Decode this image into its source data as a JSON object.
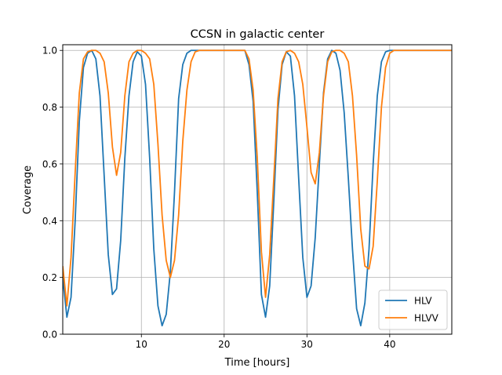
{
  "chart_data": {
    "type": "line",
    "title": "CCSN in galactic center",
    "xlabel": "Time [hours]",
    "ylabel": "Coverage",
    "xlim": [
      0.5,
      47.5
    ],
    "ylim": [
      0,
      1.02
    ],
    "xticks": [
      10,
      20,
      30,
      40
    ],
    "yticks": [
      0.0,
      0.2,
      0.4,
      0.6,
      0.8,
      1.0
    ],
    "xtick_labels": [
      "10",
      "20",
      "30",
      "40"
    ],
    "ytick_labels": [
      "0.0",
      "0.2",
      "0.4",
      "0.6",
      "0.8",
      "1.0"
    ],
    "grid": true,
    "legend_position": "lower right",
    "series": [
      {
        "name": "HLV",
        "color": "#1f77b4",
        "x": [
          0.5,
          1.0,
          1.5,
          2.0,
          2.5,
          3.0,
          3.5,
          4.0,
          4.5,
          5.0,
          5.5,
          6.0,
          6.5,
          7.0,
          7.5,
          8.0,
          8.5,
          9.0,
          9.5,
          10.0,
          10.5,
          11.0,
          11.5,
          12.0,
          12.5,
          13.0,
          13.5,
          14.0,
          14.5,
          15.0,
          15.5,
          16.0,
          16.5,
          17.0,
          17.5,
          18.0,
          22.5,
          23.0,
          23.5,
          24.0,
          24.5,
          25.0,
          25.5,
          26.0,
          26.5,
          27.0,
          27.5,
          28.0,
          28.5,
          29.0,
          29.5,
          30.0,
          30.5,
          31.0,
          31.5,
          32.0,
          32.5,
          33.0,
          33.5,
          34.0,
          34.5,
          35.0,
          35.5,
          36.0,
          36.5,
          37.0,
          37.5,
          38.0,
          38.5,
          39.0,
          39.5,
          40.0,
          40.5,
          41.0,
          41.5,
          42.0,
          47.5
        ],
        "y": [
          0.2,
          0.06,
          0.13,
          0.4,
          0.75,
          0.94,
          0.99,
          1.0,
          0.97,
          0.84,
          0.56,
          0.28,
          0.14,
          0.16,
          0.33,
          0.62,
          0.84,
          0.96,
          0.995,
          0.98,
          0.88,
          0.62,
          0.3,
          0.1,
          0.03,
          0.07,
          0.22,
          0.5,
          0.83,
          0.95,
          0.99,
          1.0,
          1.0,
          1.0,
          1.0,
          1.0,
          1.0,
          0.95,
          0.82,
          0.5,
          0.14,
          0.06,
          0.17,
          0.47,
          0.79,
          0.95,
          0.995,
          0.98,
          0.84,
          0.55,
          0.27,
          0.13,
          0.17,
          0.34,
          0.6,
          0.85,
          0.97,
          1.0,
          0.99,
          0.93,
          0.78,
          0.55,
          0.3,
          0.09,
          0.03,
          0.11,
          0.3,
          0.6,
          0.84,
          0.96,
          0.995,
          1.0,
          1.0,
          1.0,
          1.0,
          1.0,
          1.0
        ]
      },
      {
        "name": "HLVV",
        "color": "#ff7f0e",
        "x": [
          0.5,
          1.0,
          1.5,
          2.0,
          2.5,
          3.0,
          3.5,
          4.0,
          4.5,
          5.0,
          5.5,
          6.0,
          6.5,
          7.0,
          7.5,
          8.0,
          8.5,
          9.0,
          9.5,
          10.0,
          10.5,
          11.0,
          11.5,
          12.0,
          12.5,
          13.0,
          13.5,
          14.0,
          14.5,
          15.0,
          15.5,
          16.0,
          16.5,
          17.0,
          17.5,
          18.0,
          22.5,
          23.0,
          23.5,
          24.0,
          24.5,
          25.0,
          25.5,
          26.0,
          26.5,
          27.0,
          27.5,
          28.0,
          28.5,
          29.0,
          29.5,
          30.0,
          30.5,
          31.0,
          31.5,
          32.0,
          32.5,
          33.0,
          33.5,
          34.0,
          34.5,
          35.0,
          35.5,
          36.0,
          36.5,
          37.0,
          37.5,
          38.0,
          38.5,
          39.0,
          39.5,
          40.0,
          40.5,
          41.0,
          41.5,
          42.0,
          47.5
        ],
        "y": [
          0.24,
          0.1,
          0.27,
          0.57,
          0.85,
          0.97,
          0.995,
          1.0,
          1.0,
          0.99,
          0.96,
          0.85,
          0.66,
          0.56,
          0.64,
          0.84,
          0.96,
          0.99,
          1.0,
          1.0,
          0.99,
          0.97,
          0.88,
          0.67,
          0.42,
          0.26,
          0.2,
          0.26,
          0.42,
          0.68,
          0.86,
          0.96,
          0.995,
          1.0,
          1.0,
          1.0,
          1.0,
          0.97,
          0.86,
          0.62,
          0.29,
          0.13,
          0.28,
          0.55,
          0.83,
          0.96,
          0.995,
          1.0,
          0.99,
          0.96,
          0.88,
          0.73,
          0.57,
          0.53,
          0.64,
          0.84,
          0.96,
          0.995,
          1.0,
          1.0,
          0.99,
          0.96,
          0.84,
          0.63,
          0.37,
          0.24,
          0.23,
          0.31,
          0.54,
          0.8,
          0.94,
          0.99,
          1.0,
          1.0,
          1.0,
          1.0,
          1.0
        ]
      }
    ]
  }
}
